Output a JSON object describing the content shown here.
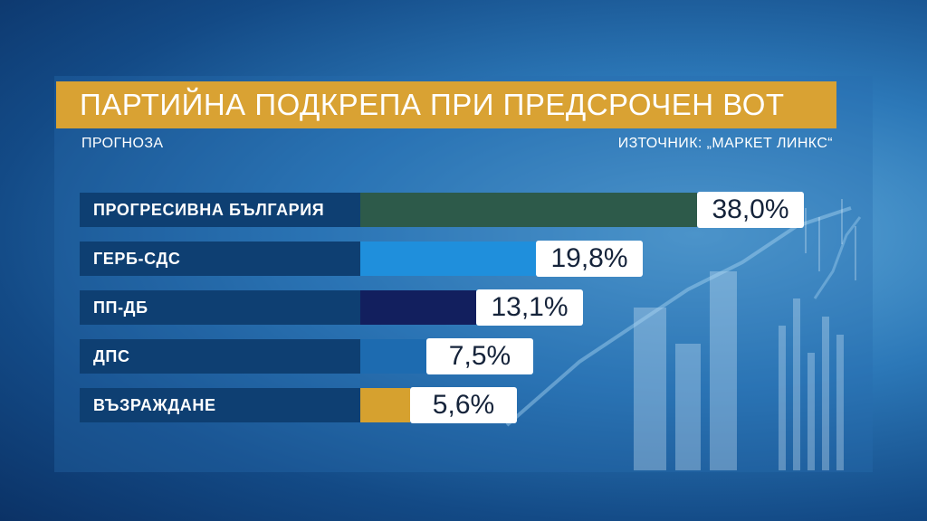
{
  "title": "ПАРТИЙНА ПОДКРЕПА ПРИ ПРЕДСРОЧЕН ВОТ",
  "subtitle": "ПРОГНОЗА",
  "source": "ИЗТОЧНИК: „МАРКЕТ ЛИНКС“",
  "chart_data": {
    "type": "bar",
    "orientation": "horizontal",
    "title": "ПАРТИЙНА ПОДКРЕПА ПРИ ПРЕДСРОЧЕН ВОТ",
    "subtitle": "ПРОГНОЗА",
    "categories": [
      "ПРОГРЕСИВНА БЪЛГАРИЯ",
      "ГЕРБ-СДС",
      "ПП-ДБ",
      "ДПС",
      "ВЪЗРАЖДАНЕ"
    ],
    "values": [
      38.0,
      19.8,
      13.1,
      7.5,
      5.6
    ],
    "value_labels": [
      "38,0%",
      "19,8%",
      "13,1%",
      "7,5%",
      "5,6%"
    ],
    "unit": "%",
    "colors": [
      "#2d5a4a",
      "#1f8fdc",
      "#121f5e",
      "#1d6bb0",
      "#d6a12f"
    ],
    "xlim": [
      0,
      38.0
    ],
    "grid": false,
    "legend": "none"
  }
}
